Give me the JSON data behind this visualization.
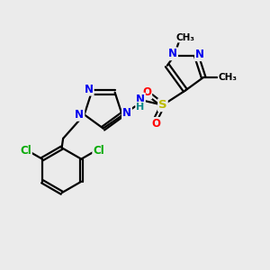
{
  "background_color": "#ebebeb",
  "bond_color": "#000000",
  "atom_colors": {
    "N": "#0000ee",
    "O": "#ff0000",
    "S": "#bbbb00",
    "Cl": "#00aa00",
    "C": "#000000",
    "H": "#008888",
    "CH3": "#000000"
  },
  "figsize": [
    3.0,
    3.0
  ],
  "dpi": 100
}
